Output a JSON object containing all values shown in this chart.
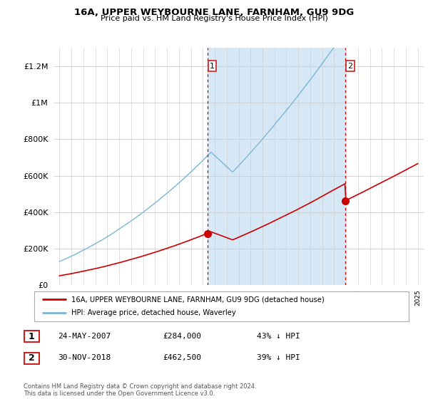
{
  "title": "16A, UPPER WEYBOURNE LANE, FARNHAM, GU9 9DG",
  "subtitle": "Price paid vs. HM Land Registry's House Price Index (HPI)",
  "legend_line1": "16A, UPPER WEYBOURNE LANE, FARNHAM, GU9 9DG (detached house)",
  "legend_line2": "HPI: Average price, detached house, Waverley",
  "t1_label": "1",
  "t1_date": "24-MAY-2007",
  "t1_price": "£284,000",
  "t1_hpi": "43% ↓ HPI",
  "t2_label": "2",
  "t2_date": "30-NOV-2018",
  "t2_price": "£462,500",
  "t2_hpi": "39% ↓ HPI",
  "footer": "Contains HM Land Registry data © Crown copyright and database right 2024.\nThis data is licensed under the Open Government Licence v3.0.",
  "hpi_color": "#7ab5d8",
  "price_color": "#cc0000",
  "vline_color": "#cc0000",
  "shade_color": "#d6e8f5",
  "plot_bg": "#f0f4f8",
  "ylim": [
    0,
    1300000
  ],
  "yticks": [
    0,
    200000,
    400000,
    600000,
    800000,
    1000000,
    1200000
  ],
  "sale1_year": 2007.39,
  "sale2_year": 2018.92,
  "sale1_price": 284000,
  "sale2_price": 462500
}
